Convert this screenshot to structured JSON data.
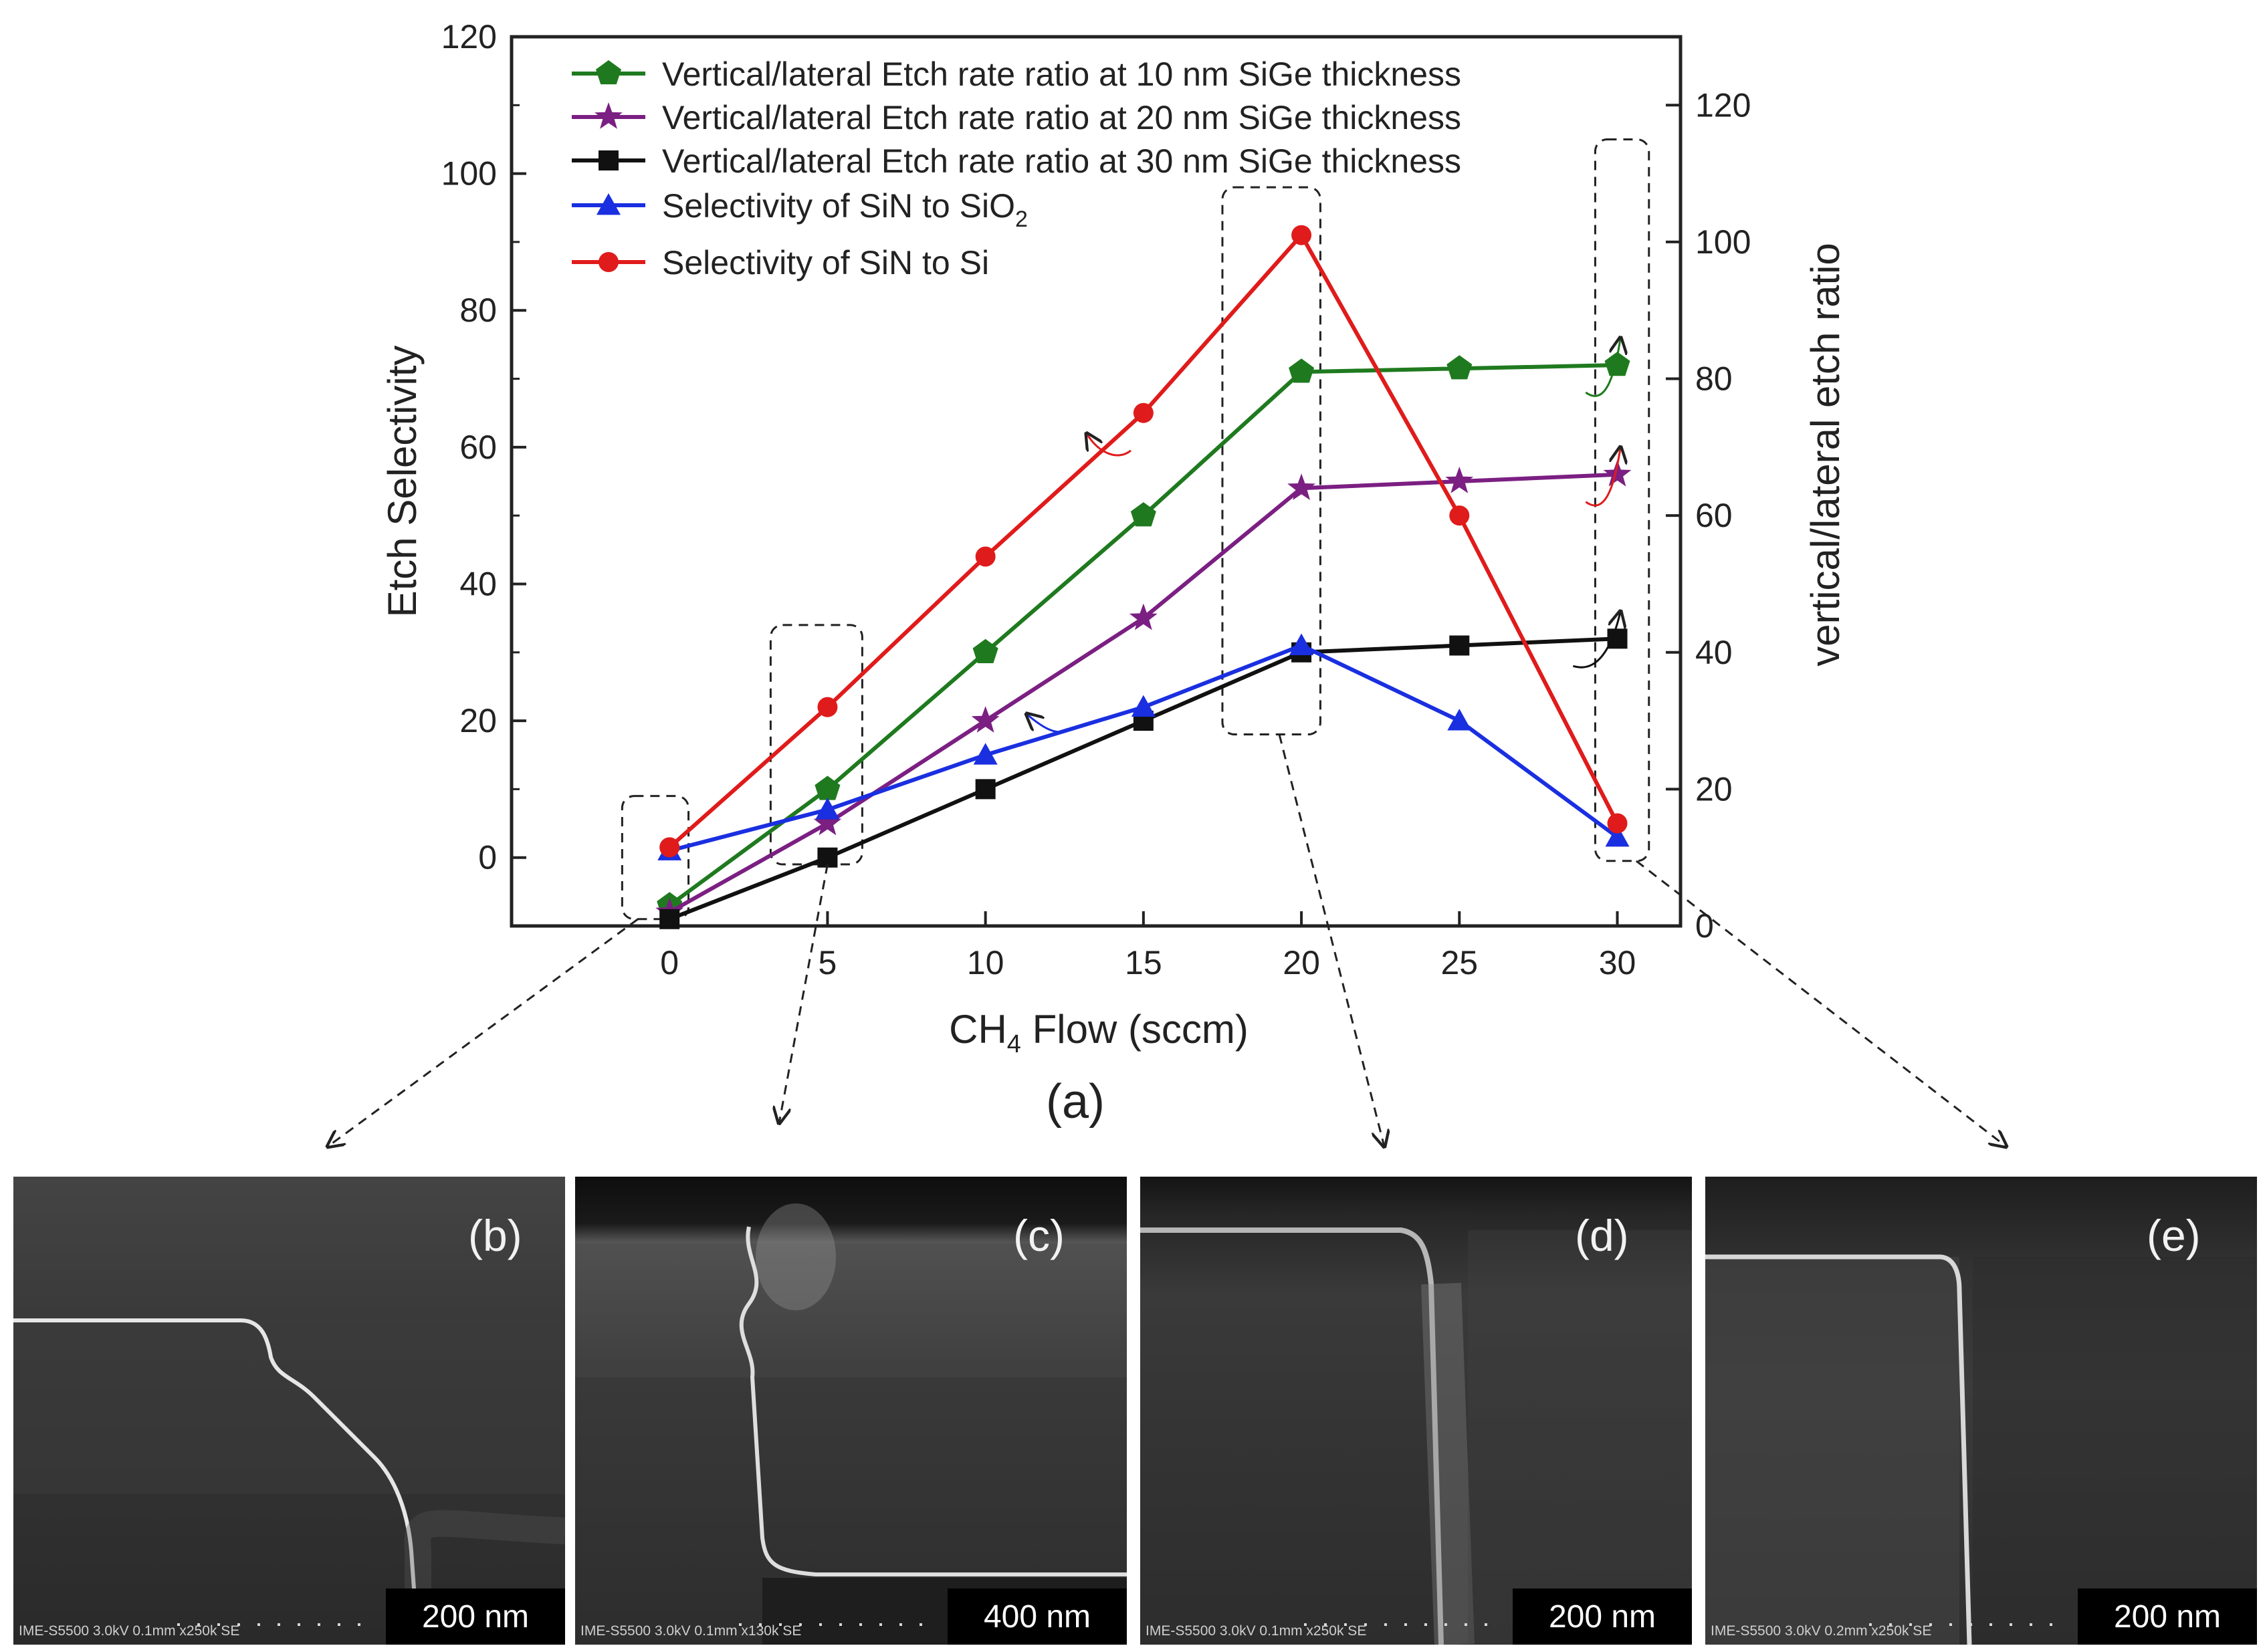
{
  "chart_data": {
    "type": "line",
    "x": [
      0,
      5,
      10,
      15,
      20,
      25,
      30
    ],
    "xlabel_main": "CH",
    "xlabel_sub": "4",
    "xlabel_rest": " Flow (sccm)",
    "ylabel": "Etch Selectivity",
    "y2label": "vertical/lateral etch ratio",
    "xlim": [
      -5,
      32
    ],
    "ylim": [
      -10,
      120
    ],
    "y2lim": [
      0,
      130
    ],
    "xticks": [
      "0",
      "5",
      "10",
      "15",
      "20",
      "25",
      "30"
    ],
    "yticks": [
      "0",
      "20",
      "40",
      "60",
      "80",
      "100",
      "120"
    ],
    "y2ticks": [
      "0",
      "20",
      "40",
      "60",
      "80",
      "100",
      "120"
    ],
    "panel_label": "(a)",
    "series": [
      {
        "name": "Vertical/lateral Etch rate ratio at 10 nm SiGe  thickness",
        "axis": "right",
        "color": "#1f7a1f",
        "marker": "pentagon",
        "values": [
          3,
          20,
          40,
          60,
          81,
          81.5,
          82
        ]
      },
      {
        "name": "Vertical/lateral Etch rate ratio at 20 nm SiGe  thickness",
        "axis": "right",
        "color": "#7b1f82",
        "marker": "star",
        "values": [
          2,
          15,
          30,
          45,
          64,
          65,
          66
        ]
      },
      {
        "name": "Vertical/lateral Etch rate ratio at 30 nm SiGe  thickness",
        "axis": "right",
        "color": "#111111",
        "marker": "square",
        "values": [
          1,
          10,
          20,
          30,
          40,
          41,
          42
        ]
      },
      {
        "name": "Selectivity of SiN to SiO",
        "name_sub": "2",
        "axis": "left",
        "color": "#1a2fe0",
        "marker": "triangle",
        "values": [
          1,
          7,
          15,
          22,
          31,
          20,
          3
        ]
      },
      {
        "name": "Selectivity of SiN to Si",
        "axis": "left",
        "color": "#e01b1b",
        "marker": "circle",
        "values": [
          1.5,
          22,
          44,
          65,
          91,
          50,
          5
        ]
      }
    ]
  },
  "sem_images": [
    {
      "label": "(b)",
      "info": "IME-S5500 3.0kV 0.1mm x250k SE",
      "scale": "200 nm"
    },
    {
      "label": "(c)",
      "info": "IME-S5500 3.0kV 0.1mm x130k SE",
      "scale": "400 nm"
    },
    {
      "label": "(d)",
      "info": "IME-S5500 3.0kV 0.1mm x250k SE",
      "scale": "200 nm"
    },
    {
      "label": "(e)",
      "info": "IME-S5500 3.0kV 0.2mm x250k SE",
      "scale": "200 nm"
    }
  ]
}
